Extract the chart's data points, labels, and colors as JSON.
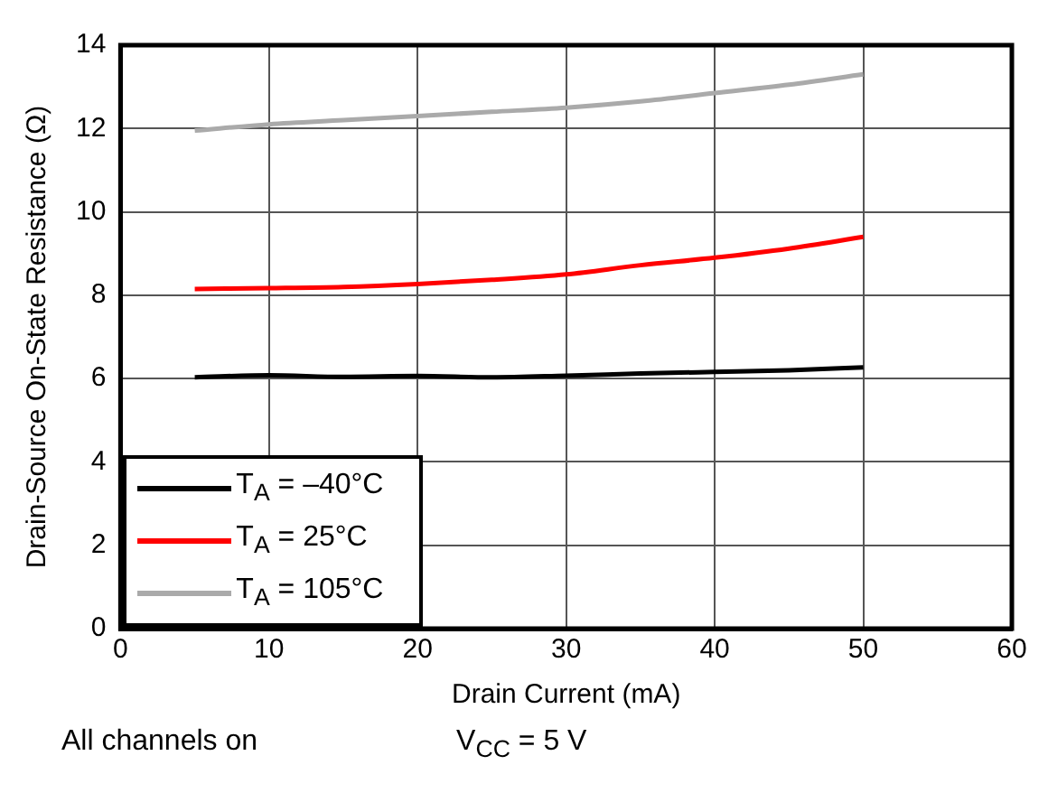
{
  "chart_data": {
    "type": "line",
    "xlabel": "Drain Current (mA)",
    "ylabel": "Drain-Source On-State Resistance (Ω)",
    "x": [
      5,
      10,
      15,
      20,
      25,
      30,
      35,
      40,
      45,
      50
    ],
    "series": [
      {
        "name": "T$_{A}$ = –40°C",
        "color": "#000000",
        "values": [
          6.03,
          6.08,
          6.04,
          6.06,
          6.03,
          6.07,
          6.12,
          6.16,
          6.2,
          6.27
        ]
      },
      {
        "name": "T$_{A}$ = 25°C",
        "color": "#ff0000",
        "values": [
          8.15,
          8.17,
          8.2,
          8.27,
          8.37,
          8.5,
          8.72,
          8.9,
          9.12,
          9.4
        ]
      },
      {
        "name": "T$_{A}$ = 105°C",
        "color": "#aaaaaa",
        "values": [
          11.95,
          12.1,
          12.2,
          12.3,
          12.4,
          12.5,
          12.65,
          12.85,
          13.05,
          13.3
        ]
      }
    ],
    "xlim": [
      0,
      60
    ],
    "xticks": [
      0,
      10,
      20,
      30,
      40,
      50,
      60
    ],
    "ylim": [
      0,
      14
    ],
    "yticks": [
      0,
      2,
      4,
      6,
      8,
      10,
      12,
      14
    ],
    "grid": true,
    "legend": "bottom left",
    "marker": "none",
    "line_style": "solid",
    "annotations": [
      "All channels on",
      "V$_{CC}$ = 5 V"
    ]
  }
}
